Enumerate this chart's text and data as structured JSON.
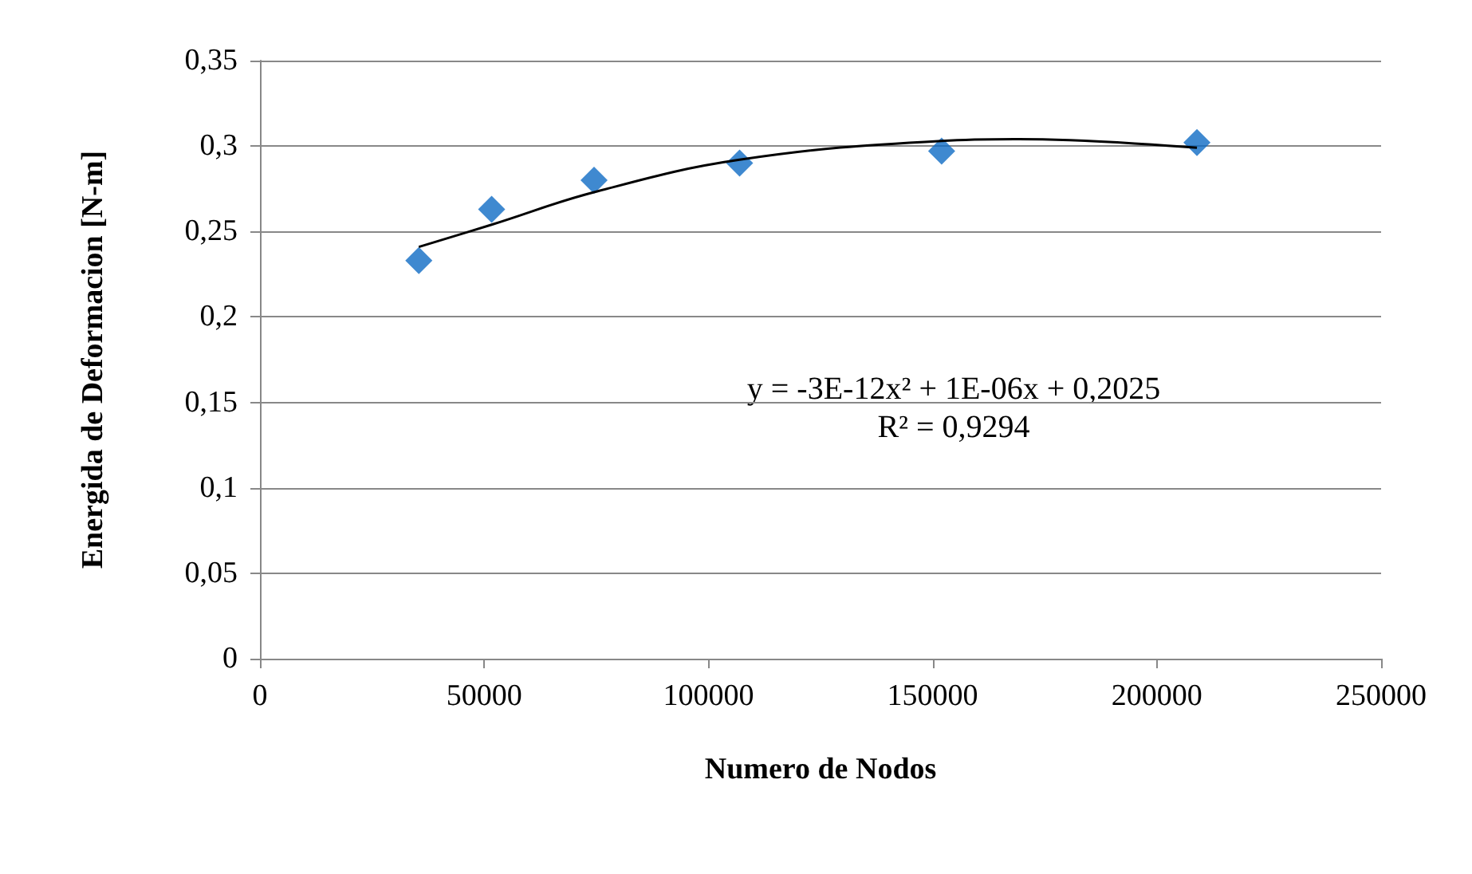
{
  "chart_data": {
    "type": "scatter",
    "xlabel": "Numero de Nodos",
    "ylabel": "Energida de Deformacion [N-m]",
    "series": [
      {
        "type": "scatter",
        "color": "#0f6cc4",
        "marker": "diamond",
        "x": [
          35430,
          51660,
          74500,
          106950,
          152000,
          208940
        ],
        "values": [
          0.233,
          0.263,
          0.28,
          0.29,
          0.297,
          0.302
        ]
      },
      {
        "type": "line",
        "color": "#000000",
        "marker": "none",
        "line_style": "solid",
        "x": [
          35430,
          51660,
          74500,
          106950,
          152000,
          169200,
          208940
        ],
        "values": [
          0.241,
          0.254,
          0.273,
          0.292,
          0.303,
          0.304,
          0.299
        ]
      }
    ],
    "annotations": [
      "y = -3E-12x² + 1E-06x + 0,2025",
      "R² = 0,9294"
    ],
    "xlim": [
      0,
      250000
    ],
    "xticks": [
      0,
      50000,
      100000,
      150000,
      200000,
      250000
    ],
    "ylim": [
      0,
      0.35
    ],
    "yticks": [
      {
        "value": 0,
        "label": "0"
      },
      {
        "value": 0.05,
        "label": "0,05"
      },
      {
        "value": 0.1,
        "label": "0,1"
      },
      {
        "value": 0.15,
        "label": "0,15"
      },
      {
        "value": 0.2,
        "label": "0,2"
      },
      {
        "value": 0.25,
        "label": "0,25"
      },
      {
        "value": 0.3,
        "label": "0,3"
      },
      {
        "value": 0.35,
        "label": "0,35"
      }
    ],
    "grid": "y"
  }
}
